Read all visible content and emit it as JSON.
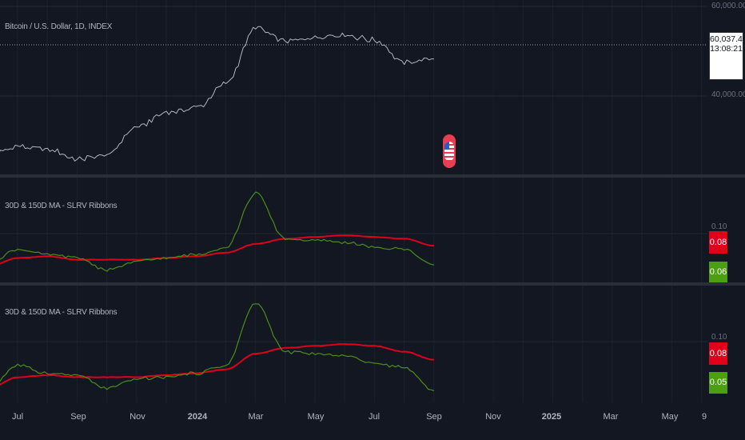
{
  "symbol_title": "Bitcoin / U.S. Dollar, 1D, INDEX",
  "price_axis": [
    "60,000.00",
    "40,000.00"
  ],
  "last_price": "60,037.40",
  "countdown": "13:08:21",
  "indicator_title": "30D & 150D MA - SLRV Ribbons",
  "indicator1_axis": [
    "0.10"
  ],
  "indicator1_values": [
    "0.08",
    "0.06"
  ],
  "indicator2_axis": [
    "0.10"
  ],
  "indicator2_values": [
    "0.08",
    "0.05"
  ],
  "time_labels": [
    "Jul",
    "Sep",
    "Nov",
    "2024",
    "Mar",
    "May",
    "Jul",
    "Sep",
    "Nov",
    "2025",
    "Mar",
    "May",
    "9"
  ],
  "icons": {
    "event_marker": "us-flag-icon"
  },
  "colors": {
    "background": "#131722",
    "price_line": "#b2b5be",
    "ma30_line": "#4b8e1a",
    "ma150_line": "#e0001b",
    "ma150_badge": "#e0001b",
    "ma30_badge": "#4b9f11"
  },
  "chart_data": [
    {
      "type": "line",
      "title": "Bitcoin / U.S. Dollar, 1D, INDEX",
      "x": [
        "2023-06",
        "2023-07",
        "2023-08",
        "2023-09",
        "2023-10",
        "2023-11",
        "2023-12",
        "2024-01",
        "2024-02",
        "2024-03",
        "2024-04",
        "2024-05",
        "2024-06",
        "2024-07",
        "2024-08",
        "2024-09"
      ],
      "series": [
        {
          "name": "Bitcoin / U.S. Dollar",
          "values": [
            27000,
            30500,
            29500,
            26200,
            27500,
            37000,
            42000,
            43500,
            51500,
            70500,
            66000,
            67500,
            68000,
            66500,
            59000,
            60037.4
          ]
        }
      ],
      "yticks": [
        "40,000.00",
        "60,000.00"
      ],
      "ylim": [
        21000,
        80000
      ]
    },
    {
      "type": "line",
      "title": "30D & 150D MA - SLRV Ribbons",
      "x": [
        "2023-06",
        "2023-07",
        "2023-08",
        "2023-09",
        "2023-10",
        "2023-11",
        "2023-12",
        "2024-01",
        "2024-02",
        "2024-03",
        "2024-04",
        "2024-05",
        "2024-06",
        "2024-07",
        "2024-08",
        "2024-09"
      ],
      "series": [
        {
          "name": "30D MA",
          "values": [
            0.062,
            0.078,
            0.072,
            0.068,
            0.054,
            0.064,
            0.068,
            0.072,
            0.08,
            0.142,
            0.09,
            0.088,
            0.086,
            0.08,
            0.078,
            0.06
          ]
        },
        {
          "name": "150D MA",
          "values": [
            0.058,
            0.068,
            0.07,
            0.066,
            0.066,
            0.066,
            0.068,
            0.07,
            0.074,
            0.084,
            0.09,
            0.092,
            0.094,
            0.092,
            0.09,
            0.082
          ]
        }
      ],
      "yticks": [
        "0.10"
      ],
      "ylim": [
        0.04,
        0.16
      ]
    },
    {
      "type": "line",
      "title": "30D & 150D MA - SLRV Ribbons",
      "x": [
        "2023-06",
        "2023-07",
        "2023-08",
        "2023-09",
        "2023-10",
        "2023-11",
        "2023-12",
        "2024-01",
        "2024-02",
        "2024-03",
        "2024-04",
        "2024-05",
        "2024-06",
        "2024-07",
        "2024-08",
        "2024-09"
      ],
      "series": [
        {
          "name": "30D MA",
          "values": [
            0.055,
            0.078,
            0.07,
            0.068,
            0.054,
            0.064,
            0.066,
            0.07,
            0.078,
            0.142,
            0.092,
            0.09,
            0.088,
            0.08,
            0.076,
            0.052
          ]
        },
        {
          "name": "150D MA",
          "values": [
            0.054,
            0.066,
            0.068,
            0.066,
            0.066,
            0.066,
            0.068,
            0.07,
            0.074,
            0.09,
            0.096,
            0.098,
            0.1,
            0.098,
            0.092,
            0.084
          ]
        }
      ],
      "yticks": [
        "0.10"
      ],
      "ylim": [
        0.04,
        0.16
      ]
    }
  ]
}
